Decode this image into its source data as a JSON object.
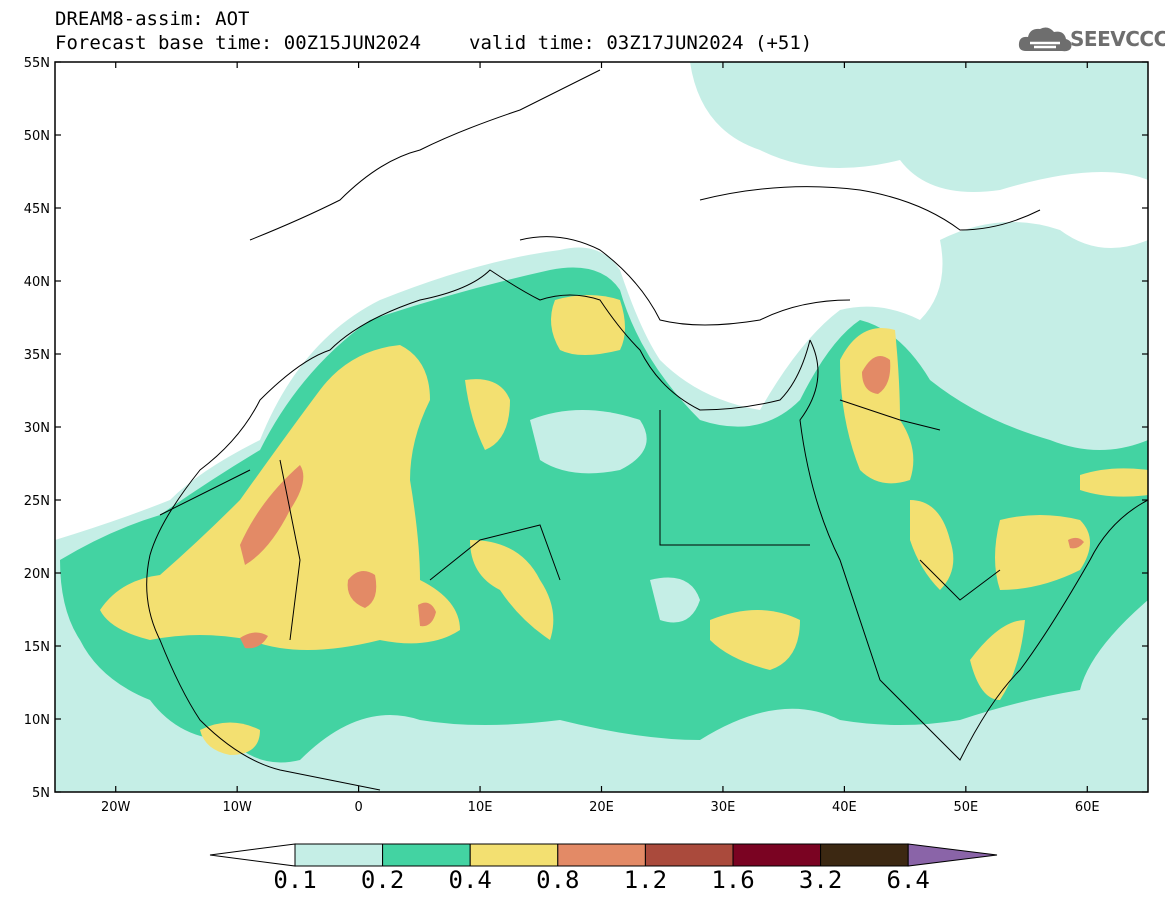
{
  "header": {
    "line1": "DREAM8-assim: AOT",
    "base_time": "Forecast base time: 00Z15JUN2024",
    "valid_time": "valid time: 03Z17JUN2024 (+51)"
  },
  "logo": {
    "text": "SEEVCCC"
  },
  "map": {
    "lon_range": [
      -25,
      65
    ],
    "lat_range": [
      5,
      55
    ],
    "lat_ticks": [
      "55N",
      "50N",
      "45N",
      "40N",
      "35N",
      "30N",
      "25N",
      "20N",
      "15N",
      "10N",
      "5N"
    ],
    "lon_ticks": [
      "20W",
      "10W",
      "0",
      "10E",
      "20E",
      "30E",
      "40E",
      "50E",
      "60E"
    ]
  },
  "colorbar": {
    "labels": [
      "0.1",
      "0.2",
      "0.4",
      "0.8",
      "1.2",
      "1.6",
      "3.2",
      "6.4"
    ],
    "colors": [
      "#ffffff",
      "#c5eee6",
      "#43d3a2",
      "#f3e071",
      "#e38a66",
      "#aa4a3c",
      "#7a0322",
      "#3c2812",
      "#8a64a8"
    ]
  }
}
